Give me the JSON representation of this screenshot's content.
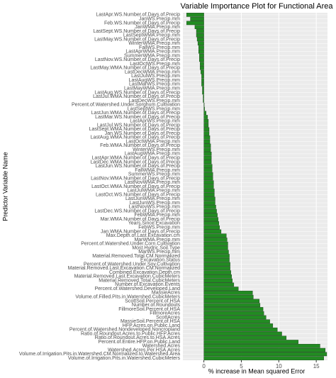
{
  "chart_data": {
    "type": "barh",
    "title": "Variable Importance Plot for Functional Area",
    "xlabel": "% increase in Mean squared Error",
    "ylabel": "Predictor Variable Name",
    "color": "#228b22",
    "grid": true,
    "xlim": [
      -2.8,
      16.5
    ],
    "xticks": [
      0,
      5,
      10,
      15
    ],
    "categories": [
      "LastApr.WS.Number.of.Days.of.Precip",
      "JanWS.Precip.mm",
      "Feb.WS.Number.of.Days.of.Precip",
      "JanWMA.Precip.mm",
      "LastSept.WS.Number.of.Days.of.Precip",
      "LastSeptWMA.Precip.mm",
      "LastMay.WS.Number.of.Days.of.Precip",
      "WinterWMA.Precip.mm",
      "FallWS.Precip.mm",
      "LastAprWMA.Precip.mm",
      "SummerWMA.Precip.mm",
      "LastNov.WS.Number.of.Days.of.Precip",
      "LastOctWS.Precip.mm",
      "LastMay.WMA.Number.of.Days.of.Precip",
      "LastDecWMA.Precip.mm",
      "LastJulWS.Precip.mm",
      "LastAugWS.Precip.mm",
      "LastMarWS.Precip.mm",
      "LastMayWMA.Precip.mm",
      "LastAug.WS.Number.of.Days.of.Precip",
      "LastJul.WMA.Number.of.Days.of.Precip",
      "LastDecWS.Precip.mm",
      "Percent.of.Watershed.Under.Sorghum.Cultivation",
      "LastSeptWS.Precip.mm",
      "LastJun.WMA.Number.of.Days.of.Precip",
      "LastMar.WS.Number.of.Days.of.Precip",
      "LastAprWS.Precip.mm",
      "LastJul.WS.Number.of.Days.of.Precip",
      "LastSept.WMA.Number.of.Days.of.Precip",
      "Jan.WS.Number.of.Days.of.Precip",
      "LastAug.WMA.Number.of.Days.of.Precip",
      "LastOctWMA.Precip.mm",
      "Feb.WMA.Number.of.Days.of.Precip",
      "WinterWS.Precip.mm",
      "LastAugWMA.Precip.mm",
      "LastApr.WMA.Number.of.Days.of.Precip",
      "LastDec.WMA.Number.of.Days.of.Precip",
      "LastJun.WS.Number.of.Days.of.Precip",
      "FallWMA.Precip.mm",
      "SummerWS.Precip.mm",
      "LastNov.WMA.Number.of.Days.of.Precip",
      "LastNovWMA.Precip.mm",
      "LastOct.WMA.Number.of.Days.of.Precip",
      "LastJulWMA.Precip.mm",
      "LastOct.WS.Number.of.Days.of.Precip",
      "LastJunWMA.Precip.mm",
      "LastJunWS.Precip.mm",
      "LastNovWS.Precip.mm",
      "LastDec.WS.Number.of.Days.of.Precip",
      "FebWMA.Precip.mm",
      "Mar.WMA.Number.of.Days.of.Precip",
      "Years.Since.Excavation",
      "FebWS.Precip.mm",
      "Jan.WMA.Number.of.Days.of.Precip",
      "Max.Depth.of.Last.Excavation.cm",
      "MarWMA.Precip.mm",
      "Percent.of.Watershed.Under.Corn.Cultivation",
      "Most.Hydric.Soil.Type",
      "MarWS.Precip.mm",
      "Material.Removed.Total.CM.Normalized",
      "Excavation.Status",
      "Percent.of.Watershed.Under.Soy.Cultivation",
      "Material.Removed.Last.Excavation.CM.Normalized",
      "Combined.Excavation.Depth.cm",
      "Material.Removed.Last.Excavation.CubicMeters",
      "Material.Removed.Total.CubicMeters",
      "Number.of.Excavation.Events",
      "Percent.of.Watershed.Developed.Land",
      "MassieAcres",
      "Volume.of.Filled.Pits.in.Watershed.CubicMeters",
      "ScottSoil.Percent.of.HSA",
      "Number.of.Roundouts",
      "FillmoreSoil.Percent.of.HSA",
      "FillmoreAcres",
      "ScottAcres",
      "MassieSoil.Percent.of.HSA",
      "HFP.Acres.on.Public.Land",
      "Percent.of.Watershed.Nondeveloped.Noncropland",
      "Ratio.of.Roundout.Acres.to.Public.HFP.Acres",
      "Ratio.of.Roundout.Acres.to.HSA.Acres",
      "Percent.of.Entire.HFP.on.Public.Land",
      "Watershed.Acres",
      "Watershed.Acres.Per.HSA.Acres",
      "Volume.of.Irrigation.Pits.in.Watershed.CM.Normalized.to.Watershed.Area",
      "Volume.of.Irrigation.Pits.in.Watershed.CubicMeters"
    ],
    "values": [
      -2.3,
      -1.8,
      -2.3,
      -1.2,
      -1.0,
      -1.0,
      -0.9,
      -0.8,
      -0.7,
      -0.7,
      -0.6,
      -0.6,
      -0.5,
      -0.5,
      -0.4,
      -0.3,
      -0.3,
      -0.3,
      -0.2,
      -0.2,
      -0.1,
      -0.1,
      0.05,
      0.1,
      0.3,
      0.5,
      0.6,
      0.6,
      0.7,
      0.7,
      0.8,
      0.8,
      0.9,
      0.9,
      1.0,
      1.0,
      1.0,
      1.1,
      1.1,
      1.2,
      1.2,
      1.3,
      1.3,
      1.4,
      1.4,
      1.5,
      1.5,
      1.6,
      1.7,
      1.8,
      1.9,
      2.0,
      2.1,
      2.3,
      3.0,
      3.1,
      3.2,
      3.2,
      3.3,
      3.4,
      3.4,
      3.5,
      3.5,
      3.6,
      3.7,
      3.8,
      4.0,
      4.6,
      6.5,
      6.6,
      7.4,
      7.5,
      7.9,
      8.0,
      8.3,
      8.8,
      9.2,
      9.8,
      10.4,
      11.0,
      12.6,
      15.5,
      16.2,
      16.4,
      16.0
    ]
  }
}
